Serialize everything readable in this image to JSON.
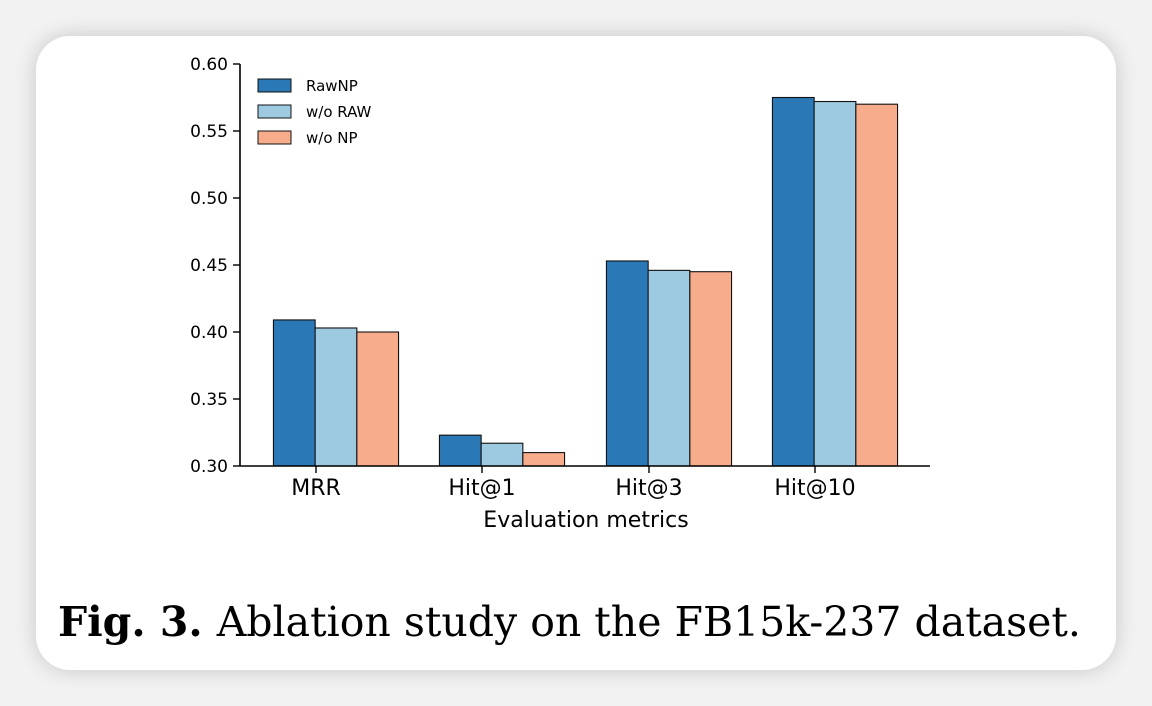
{
  "chart_data": {
    "type": "bar",
    "categories": [
      "MRR",
      "Hit@1",
      "Hit@3",
      "Hit@10"
    ],
    "series": [
      {
        "name": "RawNP",
        "color": "#2a78b6",
        "values": [
          0.409,
          0.323,
          0.453,
          0.575
        ]
      },
      {
        "name": "w/o RAW",
        "color": "#9ecae1",
        "values": [
          0.403,
          0.317,
          0.446,
          0.572
        ]
      },
      {
        "name": "w/o NP",
        "color": "#f7ac8c",
        "values": [
          0.4,
          0.31,
          0.445,
          0.57
        ]
      }
    ],
    "title": "",
    "xlabel": "Evaluation metrics",
    "ylabel": "",
    "ylim": [
      0.3,
      0.6
    ],
    "yticks": [
      "0.30",
      "0.35",
      "0.40",
      "0.45",
      "0.50",
      "0.55",
      "0.60"
    ],
    "grid": false,
    "legend_position": "top-left"
  },
  "caption": {
    "label": "Fig. 3.",
    "text": "Ablation study on the FB15k-237 dataset."
  }
}
